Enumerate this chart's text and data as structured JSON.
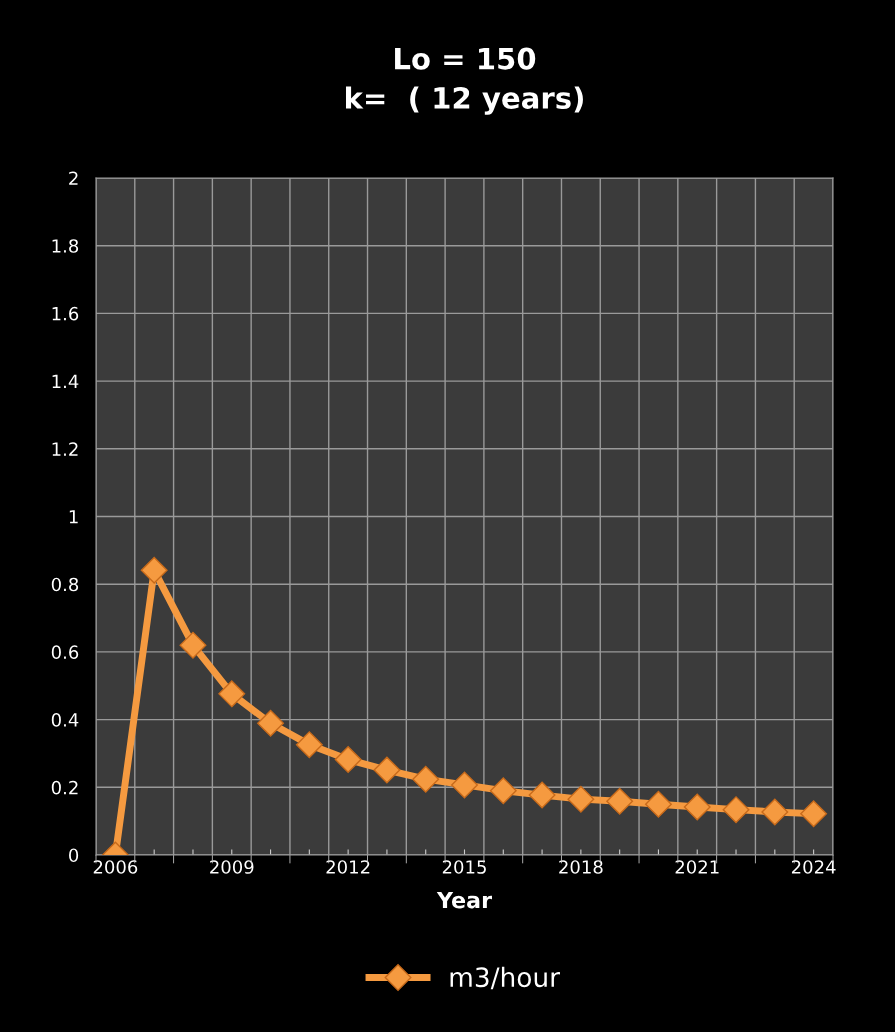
{
  "chart_data": {
    "type": "line",
    "title": "Lo = 150\nk=  ( 12 years)",
    "xlabel": "Year",
    "categories": [
      "2006",
      null,
      null,
      "2009",
      null,
      null,
      "2012",
      null,
      null,
      "2015",
      null,
      null,
      "2018",
      null,
      null,
      "2021",
      null,
      null,
      "2024"
    ],
    "series": [
      {
        "name": "m3/hour",
        "color": "#f59a40",
        "values": [
          0,
          0.841,
          0.62,
          0.476,
          0.389,
          0.326,
          0.282,
          0.251,
          0.224,
          0.207,
          0.19,
          0.177,
          0.165,
          0.159,
          0.15,
          0.142,
          0.134,
          0.127,
          0.122
        ]
      }
    ],
    "ylim": [
      0,
      2
    ],
    "yticks": [
      0,
      0.2,
      0.4,
      0.6,
      0.8,
      1,
      1.2,
      1.4,
      1.6,
      1.8,
      2
    ],
    "grid": true,
    "legend": "bottom",
    "marker": "diamond",
    "line_style": "solid"
  }
}
